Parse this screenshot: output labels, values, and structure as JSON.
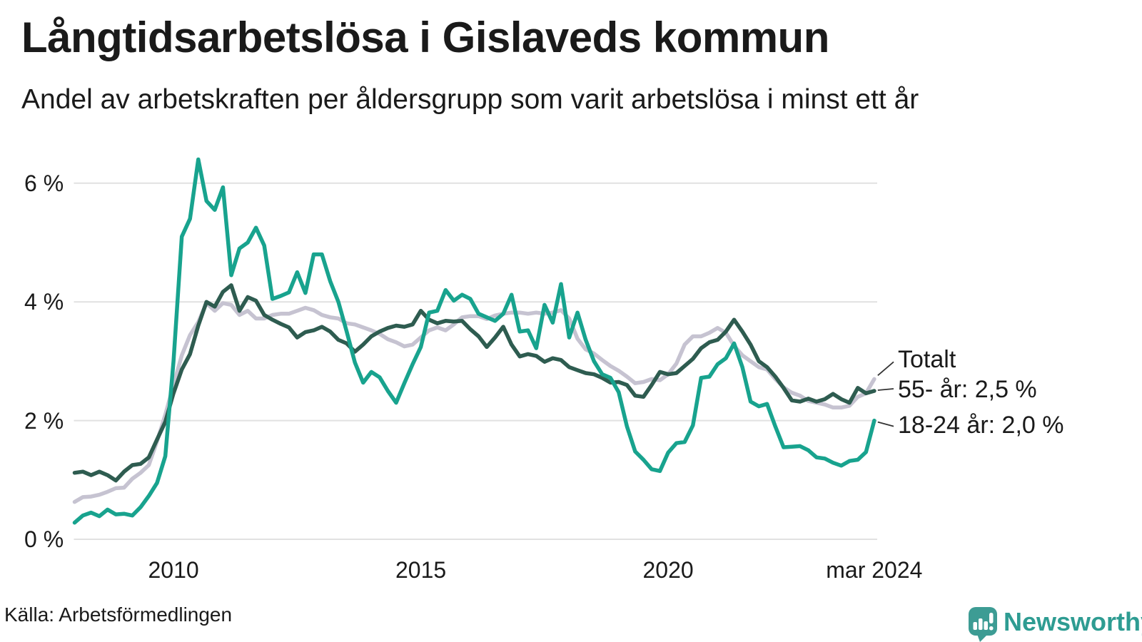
{
  "header": {
    "title": "Långtidsarbetslösa i Gislaveds kommun",
    "subtitle": "Andel av arbetskraften per åldersgrupp som varit arbetslösa i minst ett år"
  },
  "source": {
    "label": "Källa: Arbetsförmedlingen"
  },
  "branding": {
    "name": "Newsworthy",
    "color": "#2E9C92",
    "icon": "newsworthy-speech-bubble-chart-icon"
  },
  "chart_data": {
    "type": "line",
    "title": "Långtidsarbetslösa i Gislaveds kommun",
    "subtitle": "Andel av arbetskraften per åldersgrupp som varit arbetslösa i minst ett år",
    "unit": "%",
    "grid": true,
    "grid_color": "#e1e1e1",
    "legend_position": "end-of-line",
    "x_axis": {
      "start_year": 2008.0,
      "step_years": 0.166667,
      "end_year": 2024.1667,
      "ticks": [
        {
          "label": "2010",
          "value": 2010
        },
        {
          "label": "2015",
          "value": 2015
        },
        {
          "label": "2020",
          "value": 2020
        },
        {
          "label": "mar 2024",
          "value": 2024.1667
        }
      ]
    },
    "y_axis": {
      "range": [
        0,
        6.6
      ],
      "ticks": [
        {
          "label": "0 %",
          "value": 0
        },
        {
          "label": "2 %",
          "value": 2
        },
        {
          "label": "4 %",
          "value": 4
        },
        {
          "label": "6 %",
          "value": 6
        }
      ]
    },
    "series": [
      {
        "name": "Totalt",
        "color": "#C6C3D1",
        "latest_label": "Totalt",
        "values": [
          0.63,
          0.71,
          0.72,
          0.75,
          0.8,
          0.86,
          0.87,
          1.02,
          1.12,
          1.25,
          1.65,
          2.1,
          2.6,
          3.1,
          3.44,
          3.66,
          3.98,
          3.85,
          3.98,
          3.95,
          3.78,
          3.85,
          3.72,
          3.72,
          3.78,
          3.8,
          3.8,
          3.85,
          3.9,
          3.86,
          3.78,
          3.74,
          3.72,
          3.64,
          3.62,
          3.57,
          3.52,
          3.46,
          3.37,
          3.32,
          3.25,
          3.28,
          3.4,
          3.52,
          3.57,
          3.52,
          3.62,
          3.74,
          3.76,
          3.76,
          3.71,
          3.77,
          3.8,
          3.82,
          3.82,
          3.8,
          3.82,
          3.8,
          3.82,
          3.86,
          3.72,
          3.38,
          3.2,
          3.13,
          3.02,
          2.92,
          2.84,
          2.74,
          2.63,
          2.65,
          2.7,
          2.68,
          2.78,
          2.96,
          3.28,
          3.42,
          3.42,
          3.48,
          3.56,
          3.48,
          3.26,
          3.1,
          3.0,
          2.9,
          2.86,
          2.7,
          2.56,
          2.47,
          2.42,
          2.33,
          2.3,
          2.27,
          2.22,
          2.22,
          2.25,
          2.4,
          2.46,
          2.7
        ]
      },
      {
        "name": "55- år",
        "color": "#2E5C50",
        "latest_label": "55- år: 2,5 %",
        "values": [
          1.12,
          1.14,
          1.08,
          1.14,
          1.08,
          0.99,
          1.14,
          1.25,
          1.27,
          1.38,
          1.68,
          1.98,
          2.46,
          2.86,
          3.12,
          3.6,
          4.0,
          3.92,
          4.17,
          4.28,
          3.85,
          4.08,
          4.02,
          3.78,
          3.7,
          3.63,
          3.57,
          3.4,
          3.49,
          3.52,
          3.58,
          3.5,
          3.36,
          3.3,
          3.16,
          3.28,
          3.42,
          3.5,
          3.56,
          3.6,
          3.58,
          3.62,
          3.85,
          3.7,
          3.64,
          3.68,
          3.67,
          3.68,
          3.54,
          3.42,
          3.24,
          3.4,
          3.58,
          3.28,
          3.08,
          3.12,
          3.09,
          2.99,
          3.05,
          3.02,
          2.9,
          2.85,
          2.8,
          2.78,
          2.72,
          2.64,
          2.65,
          2.6,
          2.42,
          2.4,
          2.6,
          2.82,
          2.78,
          2.8,
          2.92,
          3.04,
          3.22,
          3.32,
          3.36,
          3.5,
          3.7,
          3.5,
          3.28,
          3.0,
          2.9,
          2.74,
          2.55,
          2.34,
          2.32,
          2.37,
          2.32,
          2.36,
          2.45,
          2.36,
          2.3,
          2.55,
          2.46,
          2.5
        ]
      },
      {
        "name": "18-24 år",
        "color": "#18A38E",
        "latest_label": "18-24 år: 2,0 %",
        "values": [
          0.28,
          0.4,
          0.45,
          0.39,
          0.5,
          0.42,
          0.43,
          0.4,
          0.54,
          0.73,
          0.95,
          1.4,
          3.0,
          5.1,
          5.4,
          6.4,
          5.7,
          5.55,
          5.93,
          4.45,
          4.9,
          5.0,
          5.25,
          4.95,
          4.05,
          4.1,
          4.16,
          4.5,
          4.15,
          4.8,
          4.8,
          4.35,
          4.0,
          3.5,
          2.98,
          2.64,
          2.82,
          2.73,
          2.5,
          2.3,
          2.63,
          2.95,
          3.24,
          3.82,
          3.85,
          4.2,
          4.02,
          4.12,
          4.05,
          3.8,
          3.74,
          3.68,
          3.8,
          4.12,
          3.5,
          3.52,
          3.22,
          3.95,
          3.65,
          4.3,
          3.4,
          3.82,
          3.36,
          3.0,
          2.78,
          2.72,
          2.48,
          1.9,
          1.48,
          1.34,
          1.18,
          1.15,
          1.46,
          1.62,
          1.64,
          1.92,
          2.72,
          2.74,
          2.95,
          3.05,
          3.3,
          2.9,
          2.32,
          2.24,
          2.28,
          1.9,
          1.55,
          1.56,
          1.57,
          1.5,
          1.38,
          1.36,
          1.29,
          1.24,
          1.32,
          1.34,
          1.47,
          2.0
        ]
      }
    ],
    "end_labels": [
      {
        "text": "Totalt",
        "series": "Totalt"
      },
      {
        "text": "55- år: 2,5 %",
        "series": "55- år"
      },
      {
        "text": "18-24 år: 2,0 %",
        "series": "18-24 år"
      }
    ],
    "latest_values": {
      "Totalt": 2.7,
      "55- år": 2.5,
      "18-24 år": 2.0,
      "period": "mar 2024"
    }
  }
}
